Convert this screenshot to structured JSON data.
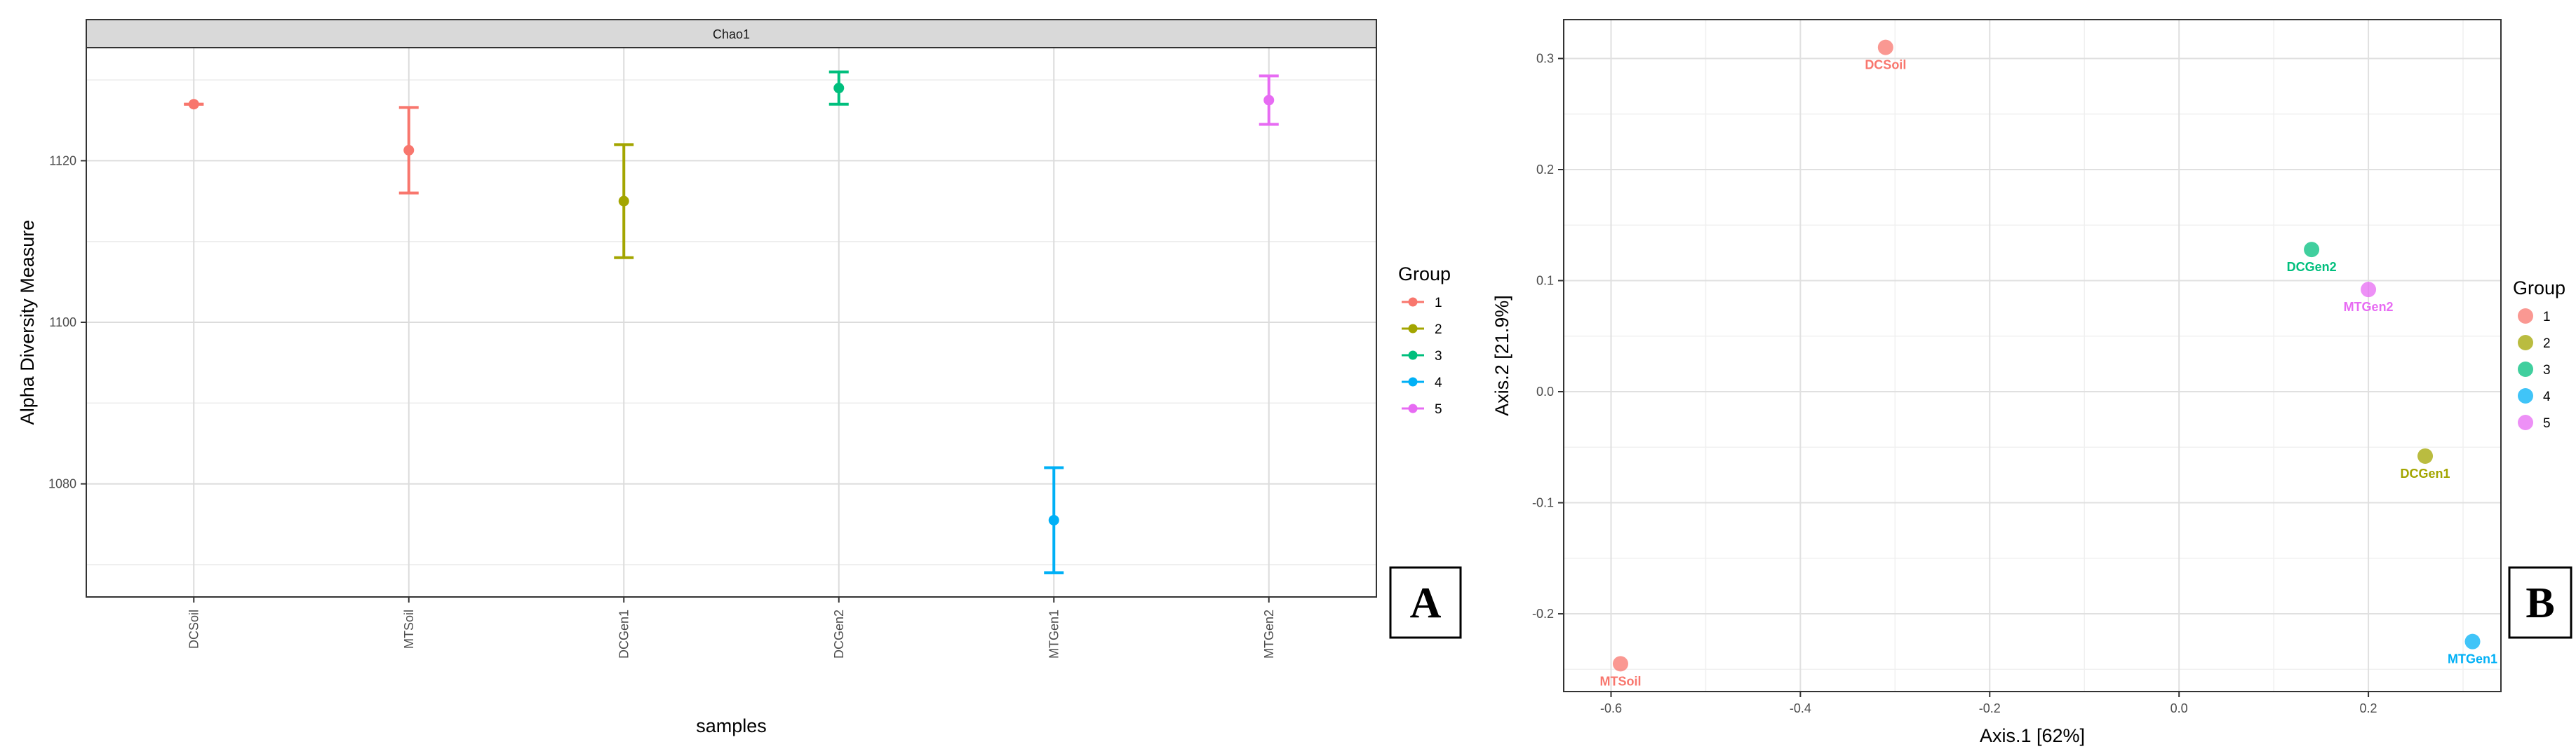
{
  "chart_data": [
    {
      "type": "scatter",
      "variant": "error-bar",
      "panel_letter": "A",
      "facet_label": "Chao1",
      "xlabel": "samples",
      "ylabel": "Alpha Diversity Measure",
      "categories": [
        "DCSoil",
        "MTSoil",
        "DCGen1",
        "DCGen2",
        "MTGen1",
        "MTGen2"
      ],
      "ylim": [
        1066,
        1134
      ],
      "yticks": [
        1080,
        1100,
        1120
      ],
      "x_tick_rotation": -90,
      "grid": true,
      "legend": {
        "title": "Group",
        "position": "right"
      },
      "series": [
        {
          "name": "1",
          "color": "#F8766D",
          "points": [
            {
              "x": "DCSoil",
              "y": 1127.0,
              "ymin": 1127.0,
              "ymax": 1127.0
            }
          ]
        },
        {
          "name": "1",
          "color": "#F8766D",
          "points": [
            {
              "x": "MTSoil",
              "y": 1121.3,
              "ymin": 1116.0,
              "ymax": 1126.6
            }
          ]
        },
        {
          "name": "2",
          "color": "#A3A500",
          "points": [
            {
              "x": "DCGen1",
              "y": 1115.0,
              "ymin": 1108.0,
              "ymax": 1122.0
            }
          ]
        },
        {
          "name": "3",
          "color": "#00BF7D",
          "points": [
            {
              "x": "DCGen2",
              "y": 1129.0,
              "ymin": 1127.0,
              "ymax": 1131.0
            }
          ]
        },
        {
          "name": "4",
          "color": "#00B0F6",
          "points": [
            {
              "x": "MTGen1",
              "y": 1075.5,
              "ymin": 1069.0,
              "ymax": 1082.0
            }
          ]
        },
        {
          "name": "5",
          "color": "#E76BF3",
          "points": [
            {
              "x": "MTGen2",
              "y": 1127.5,
              "ymin": 1124.5,
              "ymax": 1130.5
            }
          ]
        }
      ]
    },
    {
      "type": "scatter",
      "panel_letter": "B",
      "xlabel": "Axis.1  [62%]",
      "ylabel": "Axis.2  [21.9%]",
      "xlim": [
        -0.65,
        0.34
      ],
      "ylim": [
        -0.27,
        0.335
      ],
      "xticks": [
        "-0.6",
        "-0.4",
        "-0.2",
        "0.0",
        "0.2"
      ],
      "yticks": [
        "-0.2",
        "-0.1",
        "0.0",
        "0.1",
        "0.2",
        "0.3"
      ],
      "grid": true,
      "legend": {
        "title": "Group",
        "position": "right"
      },
      "series": [
        {
          "name": "1",
          "color": "#F8766D",
          "points": [
            {
              "x": -0.31,
              "y": 0.31,
              "label": "DCSoil"
            },
            {
              "x": -0.59,
              "y": -0.245,
              "label": "MTSoil"
            }
          ]
        },
        {
          "name": "2",
          "color": "#A3A500",
          "points": [
            {
              "x": 0.26,
              "y": -0.058,
              "label": "DCGen1"
            }
          ]
        },
        {
          "name": "3",
          "color": "#00BF7D",
          "points": [
            {
              "x": 0.14,
              "y": 0.128,
              "label": "DCGen2"
            }
          ]
        },
        {
          "name": "4",
          "color": "#00B0F6",
          "points": [
            {
              "x": 0.31,
              "y": -0.225,
              "label": "MTGen1"
            }
          ]
        },
        {
          "name": "5",
          "color": "#E76BF3",
          "points": [
            {
              "x": 0.2,
              "y": 0.092,
              "label": "MTGen2"
            }
          ]
        }
      ]
    }
  ]
}
